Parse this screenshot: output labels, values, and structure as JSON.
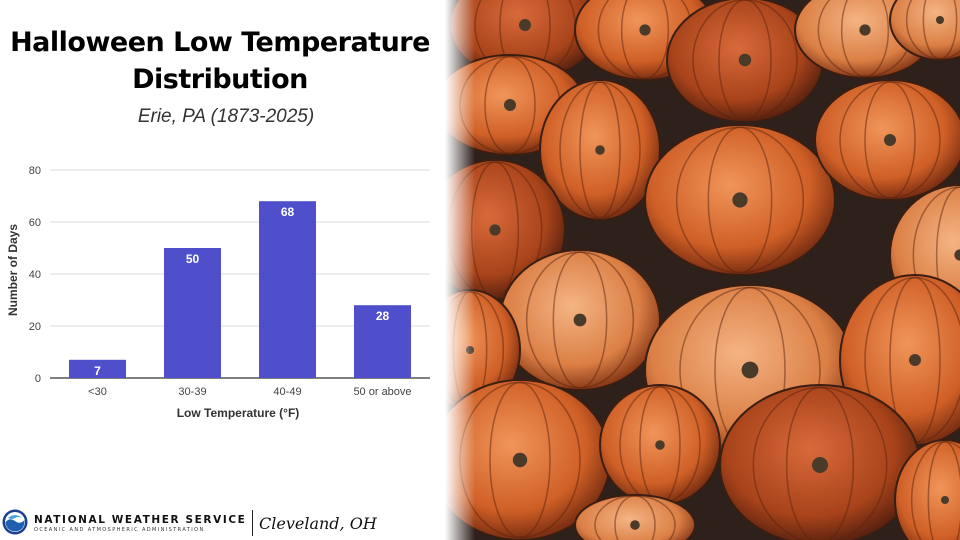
{
  "title_line1": "Halloween Low Temperature",
  "title_line2": "Distribution",
  "subtitle": "Erie, PA (1873-2025)",
  "chart_data": {
    "type": "bar",
    "categories": [
      "<30",
      "30-39",
      "40-49",
      "50 or above"
    ],
    "values": [
      7,
      50,
      68,
      28
    ],
    "data_labels": [
      "7",
      "50",
      "68",
      "28"
    ],
    "xlabel": "Low Temperature (°F)",
    "ylabel": "Number of Days",
    "ylim": [
      0,
      80
    ],
    "yticks": [
      0,
      20,
      40,
      60,
      80
    ],
    "grid": true,
    "bar_color": "#4f4fcb",
    "label_color": "#ffffff"
  },
  "footer": {
    "org_name": "NATIONAL WEATHER SERVICE",
    "org_subtitle": "OCEANIC AND ATMOSPHERIC ADMINISTRATION",
    "office": "Cleveland, OH",
    "logo_icon": "noaa-logo-icon"
  },
  "photo": {
    "subject_icon": "pumpkins-photo",
    "colors": [
      "#c9581f",
      "#e07a3a",
      "#a8431a",
      "#d98c5a",
      "#3a2a24"
    ]
  }
}
